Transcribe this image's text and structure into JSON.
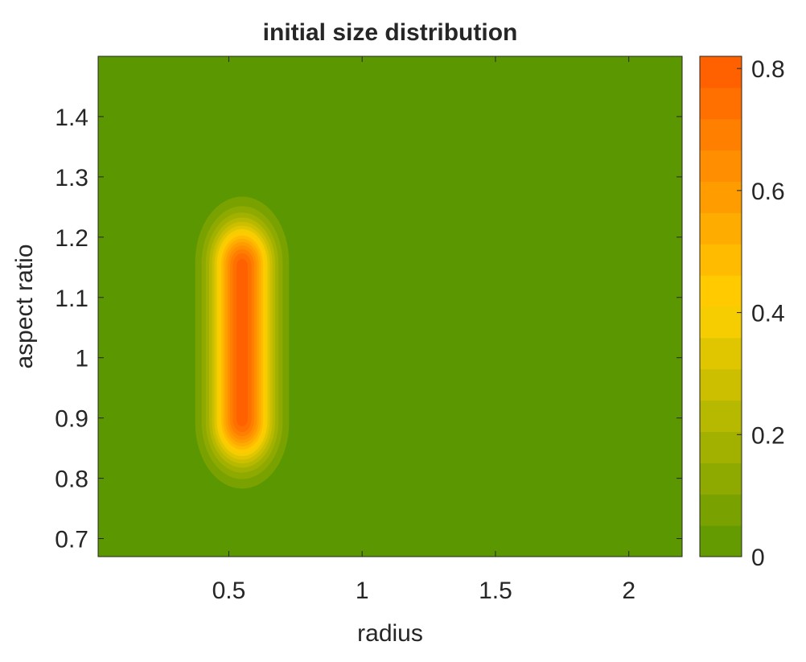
{
  "chart_data": {
    "type": "heatmap",
    "title": "initial size distribution",
    "xlabel": "radius",
    "ylabel": "aspect ratio",
    "xlim": [
      0.01,
      2.2
    ],
    "ylim": [
      0.67,
      1.5
    ],
    "xticks": [
      0.5,
      1,
      1.5,
      2
    ],
    "yticks": [
      0.7,
      0.8,
      0.9,
      1,
      1.1,
      1.2,
      1.3,
      1.4
    ],
    "xtick_labels": [
      "0.5",
      "1",
      "1.5",
      "2"
    ],
    "ytick_labels": [
      "0.7",
      "0.8",
      "0.9",
      "1",
      "1.1",
      "1.2",
      "1.3",
      "1.4"
    ],
    "colorbar": {
      "range": [
        0,
        0.82
      ],
      "ticks": [
        0,
        0.2,
        0.4,
        0.6,
        0.8
      ],
      "tick_labels": [
        "0",
        "0.2",
        "0.4",
        "0.6",
        "0.8"
      ],
      "levels": 16,
      "colormap": [
        "#5a9700",
        "#ffd100",
        "#ff5a00"
      ]
    },
    "peak": {
      "value": 0.82,
      "radius_center": 0.55,
      "radius_sigma": 0.075,
      "aspect_range": [
        0.9,
        1.15
      ],
      "aspect_sigma": 0.05
    },
    "contour_levels": [
      0.0525,
      0.105,
      0.1575,
      0.21,
      0.2625,
      0.315,
      0.3675,
      0.42,
      0.4725,
      0.525,
      0.5775,
      0.63,
      0.6825,
      0.735,
      0.7875
    ]
  }
}
